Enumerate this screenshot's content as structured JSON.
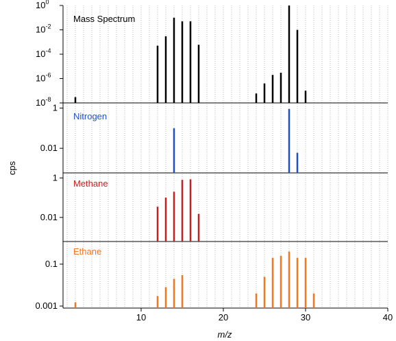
{
  "chart_data": [
    {
      "type": "bar",
      "title": "Mass Spectrum",
      "color": "#000000",
      "yscale": "log",
      "ylim": [
        1e-08,
        1
      ],
      "yticks": [
        1,
        0.01,
        0.0001,
        1e-06,
        1e-08
      ],
      "ytick_labels": [
        {
          "base": "10",
          "exp": "0"
        },
        {
          "base": "10",
          "exp": "-2"
        },
        {
          "base": "10",
          "exp": "-4"
        },
        {
          "base": "10",
          "exp": "-6"
        },
        {
          "base": "10",
          "exp": "-8"
        }
      ],
      "x": [
        2,
        12,
        13,
        14,
        15,
        16,
        17,
        24,
        25,
        26,
        27,
        28,
        29,
        30
      ],
      "values": [
        3e-08,
        0.0005,
        0.003,
        0.1,
        0.05,
        0.05,
        0.0006,
        6e-08,
        4e-07,
        2e-06,
        3e-06,
        1.2,
        0.01,
        1e-07
      ]
    },
    {
      "type": "bar",
      "title": "Nitrogen",
      "color": "#1f4fc8",
      "yscale": "log",
      "ylim": [
        0.0006,
        1.8
      ],
      "yticks": [
        1,
        0.01
      ],
      "ytick_labels": [
        "1",
        "0.01"
      ],
      "x": [
        14,
        28,
        29
      ],
      "values": [
        0.1,
        0.9,
        0.006
      ]
    },
    {
      "type": "bar",
      "title": "Methane",
      "color": "#c81e1e",
      "yscale": "log",
      "ylim": [
        0.0006,
        1.8
      ],
      "yticks": [
        1,
        0.01
      ],
      "ytick_labels": [
        "1",
        "0.01"
      ],
      "x": [
        12,
        13,
        14,
        15,
        16,
        17
      ],
      "values": [
        0.035,
        0.1,
        0.2,
        0.8,
        0.85,
        0.015
      ]
    },
    {
      "type": "bar",
      "title": "Ethane",
      "color": "#f07820",
      "yscale": "log",
      "ylim": [
        0.0008,
        1.2
      ],
      "yticks": [
        0.1,
        0.001
      ],
      "ytick_labels": [
        "0.1",
        "0.001"
      ],
      "x": [
        2,
        12,
        13,
        14,
        15,
        24,
        25,
        26,
        27,
        28,
        29,
        30,
        31
      ],
      "values": [
        0.0015,
        0.003,
        0.008,
        0.02,
        0.03,
        0.004,
        0.025,
        0.2,
        0.25,
        0.4,
        0.2,
        0.2,
        0.004
      ]
    }
  ],
  "axes": {
    "xlabel": "m/z",
    "ylabel": "cps",
    "xlim": [
      0.5,
      40
    ],
    "xticks": [
      10,
      20,
      30,
      40
    ],
    "xtick_labels": [
      "10",
      "20",
      "30",
      "40"
    ],
    "grid": "vertical dotted at every integer m/z"
  }
}
